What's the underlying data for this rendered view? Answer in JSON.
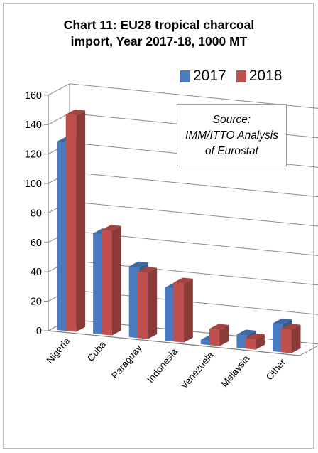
{
  "chart_data": {
    "type": "bar",
    "title": "Chart 11: EU28 tropical charcoal import, Year 2017-18, 1000 MT",
    "title_lines": [
      "Chart 11: EU28 tropical charcoal",
      "import, Year 2017-18, 1000 MT"
    ],
    "categories": [
      "Nigeria",
      "Cuba",
      "Paraguay",
      "Indonesia",
      "Venezuela",
      "Malaysia",
      "Other"
    ],
    "series": [
      {
        "name": "2017",
        "values": [
          128,
          68,
          48,
          36,
          3,
          9,
          19
        ],
        "color": "#4a7bc0"
      },
      {
        "name": "2018",
        "values": [
          147,
          71,
          45,
          40,
          11,
          7,
          16
        ],
        "color": "#c0504d"
      }
    ],
    "ylim": [
      0,
      160
    ],
    "yticks": [
      0,
      20,
      40,
      60,
      80,
      100,
      120,
      140,
      160
    ],
    "grid": true,
    "legend_position": "top-right",
    "annotation_lines": [
      "Source:",
      "IMM/ITTO Analysis",
      "of Eurostat"
    ]
  }
}
